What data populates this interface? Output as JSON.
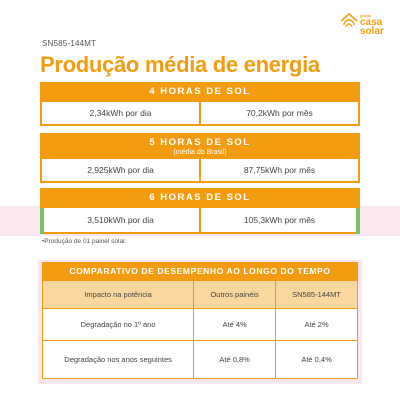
{
  "logo": {
    "small": "grupo",
    "line1": "casa",
    "line2": "solar",
    "color": "#f39c12",
    "icon": "sun-house-icon"
  },
  "model": "SN585-144MT",
  "title": "Produção média de energia",
  "blocks": [
    {
      "header": "4 HORAS DE SOL",
      "sub": "",
      "daily": "2,34kWh por dia",
      "monthly": "70,2kWh por mês"
    },
    {
      "header": "5 HORAS DE SOL",
      "sub": "(média do Brasil)",
      "daily": "2,925kWh por dia",
      "monthly": "87,75kWh por mês"
    },
    {
      "header": "6 HORAS DE SOL",
      "sub": "",
      "daily": "3,510kWh por dia",
      "monthly": "105,3kWh por mês"
    }
  ],
  "footnote": "•Produção de 01 painel solar.",
  "comparison": {
    "header": "COMPARATIVO DE DESEMPENHO AO LONGO DO TEMPO",
    "columns": [
      "Impacto na potência",
      "Outros painéis",
      "SN585-144MT"
    ],
    "rows": [
      [
        "Degradação no 1º ano",
        "Até 4%",
        "Até 2%"
      ],
      [
        "Degradação nos anos seguintes",
        "Até 0,8%",
        "Até 0,4%"
      ]
    ]
  },
  "colors": {
    "accent": "#f39c12",
    "table_header": "#fbd7a0",
    "pink": "#fbe7ef",
    "green_mark": "#7fbf6a"
  }
}
